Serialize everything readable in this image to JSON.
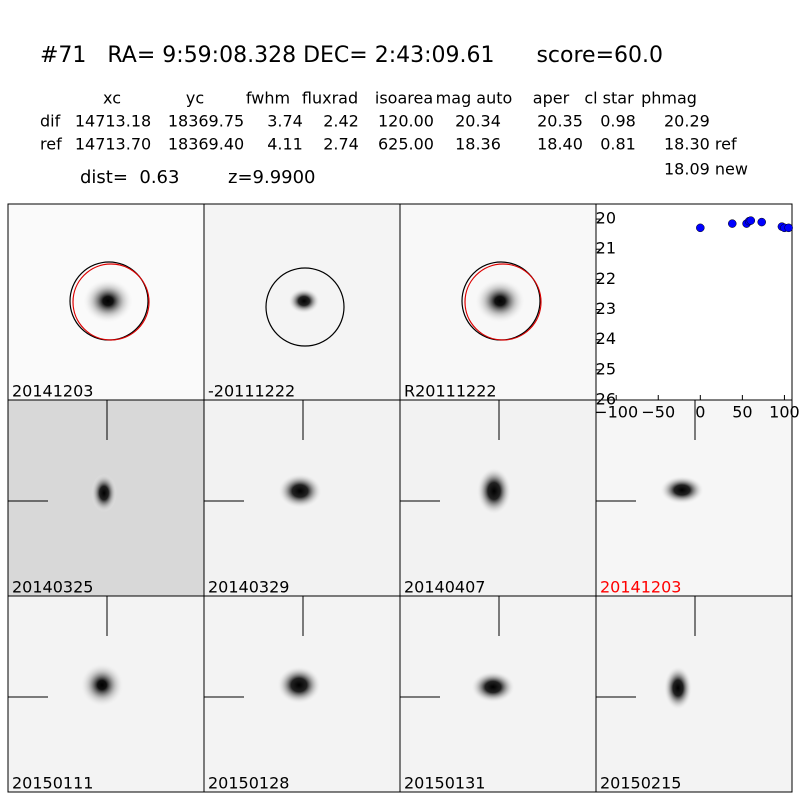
{
  "header": {
    "title": "#71   RA= 9:59:08.328 DEC= 2:43:09.61      score=60.0",
    "dist": "dist=  0.63",
    "z": "z=9.9900"
  },
  "table": {
    "columns": [
      "xc",
      "yc",
      "fwhm",
      "fluxrad",
      "isoarea",
      "mag auto",
      "aper",
      "cl star",
      "phmag"
    ],
    "rows": [
      [
        "dif",
        "14713.18",
        "18369.75",
        "3.74",
        "2.42",
        "120.00",
        "20.34",
        "20.35",
        "0.98",
        "20.29"
      ],
      [
        "ref",
        "14713.70",
        "18369.40",
        "4.11",
        "2.74",
        "625.00",
        "18.36",
        "18.40",
        "0.81",
        "18.30 ref"
      ]
    ],
    "extra": "18.09 new"
  },
  "panels": [
    "20141203",
    "-20111222",
    "R20111222",
    "20140325",
    "20140329",
    "20140407",
    "20141203",
    "20150111",
    "20150128",
    "20150131",
    "20150215"
  ],
  "chart_data": {
    "type": "scatter",
    "color": "#0000ff",
    "x": [
      0,
      38,
      55,
      58,
      60,
      73,
      97,
      100,
      105
    ],
    "values": [
      20.29,
      20.15,
      20.15,
      20.07,
      20.05,
      20.1,
      20.25,
      20.29,
      20.29
    ],
    "xlim": [
      -124,
      109
    ],
    "ylim": [
      26,
      19.5
    ],
    "xticks": [
      {
        "value": -100,
        "label": "−100"
      },
      {
        "value": -50,
        "label": "−50"
      },
      0,
      50,
      100
    ],
    "yticks": [
      20,
      21,
      22,
      23,
      24,
      25,
      26
    ]
  }
}
